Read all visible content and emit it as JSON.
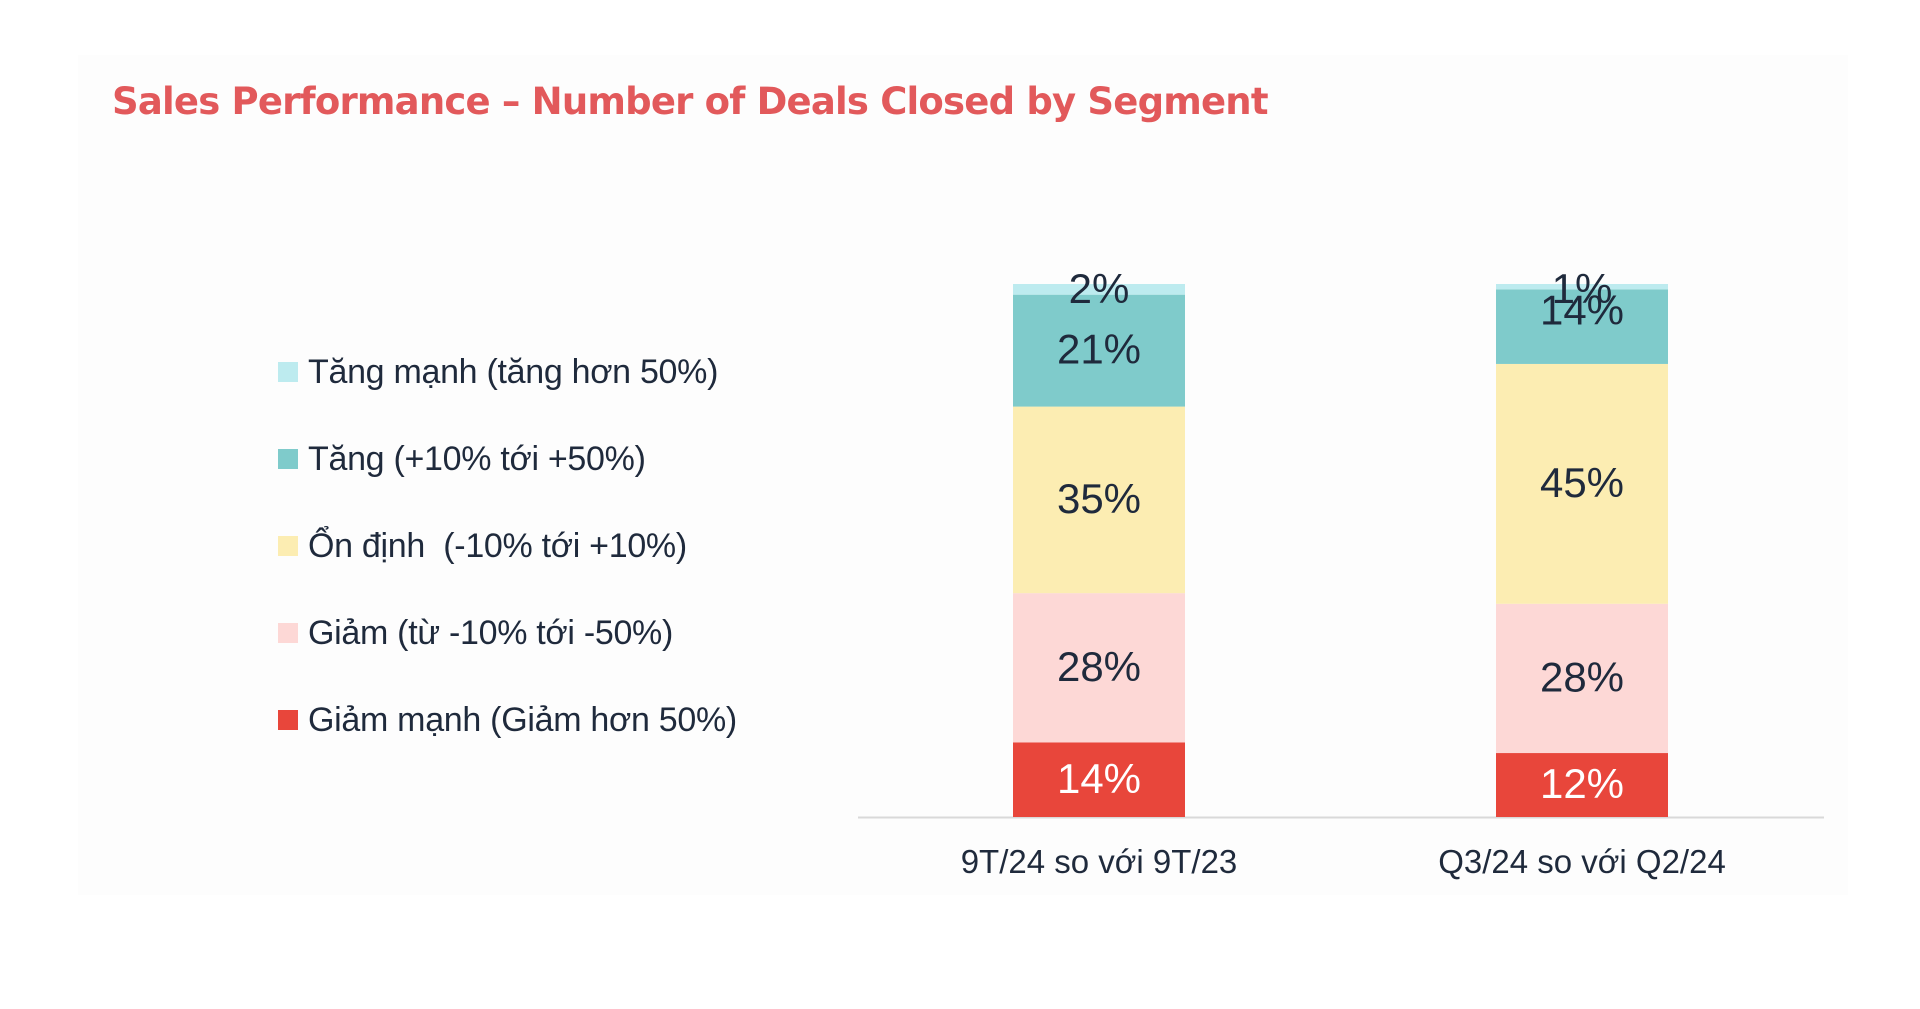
{
  "chart_data": {
    "type": "bar",
    "stacked": true,
    "percent": true,
    "title": "Sales Performance – Number of Deals Closed by Segment",
    "categories": [
      "9T/24 so với 9T/23",
      "Q3/24 so với Q2/24"
    ],
    "series": [
      {
        "name": "Giảm mạnh (Giảm hơn 50%)",
        "values": [
          14,
          12
        ],
        "color": "#e8463b",
        "label_color": "#ffffff"
      },
      {
        "name": "Giảm (từ -10% tới -50%)",
        "values": [
          28,
          28
        ],
        "color": "#fdd8d6",
        "label_color": "#1f2a3c"
      },
      {
        "name": "Ổn định  (-10% tới +10%)",
        "values": [
          35,
          45
        ],
        "color": "#fcedb2",
        "label_color": "#1f2a3c"
      },
      {
        "name": "Tăng (+10% tới +50%)",
        "values": [
          21,
          14
        ],
        "color": "#7fcbcb",
        "label_color": "#1f2a3c"
      },
      {
        "name": "Tăng mạnh (tăng hơn 50%)",
        "values": [
          2,
          1
        ],
        "color": "#bdebef",
        "label_color": "#1f2a3c"
      }
    ],
    "value_suffix": "%",
    "legend_position": "left",
    "legend_order": [
      {
        "label": "Tăng mạnh (tăng hơn 50%)",
        "color": "#bdebef"
      },
      {
        "label": "Tăng (+10% tới +50%)",
        "color": "#7fcbcb"
      },
      {
        "label": "Ổn định  (-10% tới +10%)",
        "color": "#fcedb2"
      },
      {
        "label": "Giảm (từ -10% tới -50%)",
        "color": "#fdd8d6"
      },
      {
        "label": "Giảm mạnh (Giảm hơn 50%)",
        "color": "#e8463b"
      }
    ],
    "ylim": [
      0,
      100
    ],
    "grid": false,
    "title_color": "#e2595b"
  }
}
